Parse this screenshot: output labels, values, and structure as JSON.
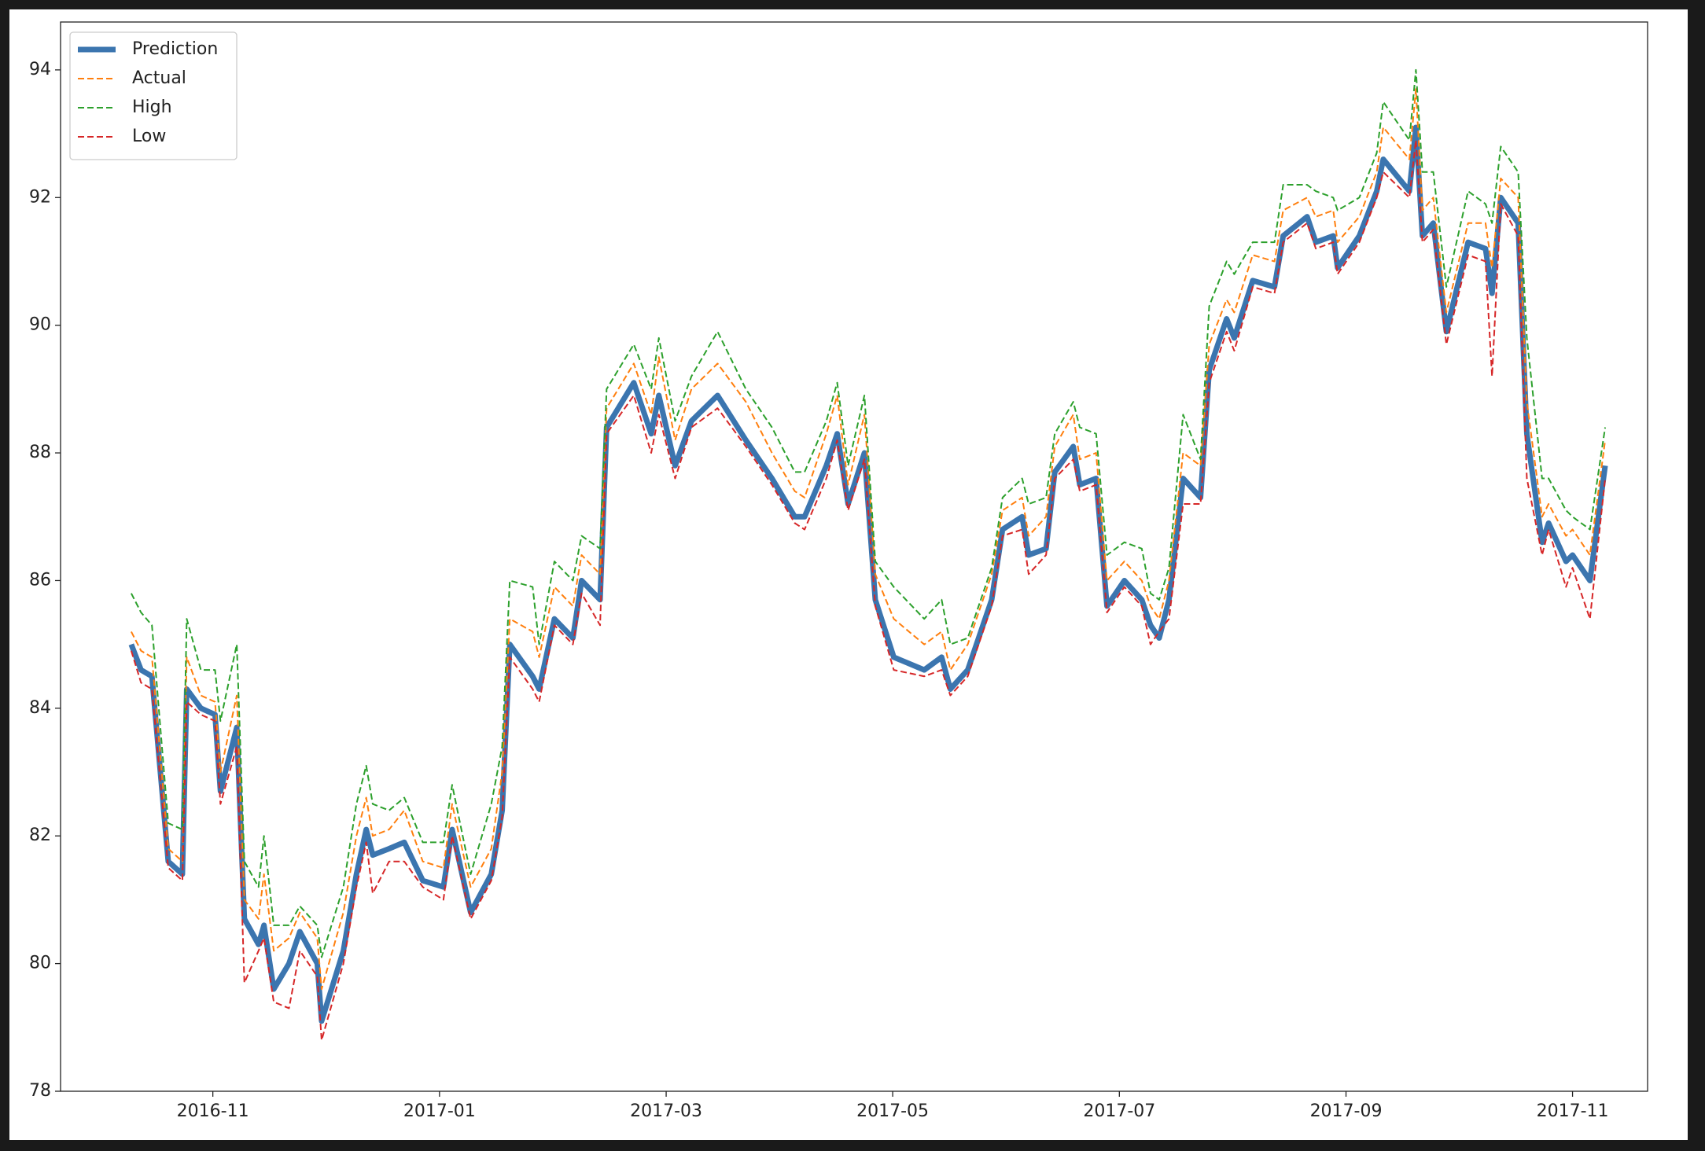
{
  "chart_data": {
    "type": "line",
    "x": [
      2016.7733,
      2016.7805,
      2016.7885,
      2016.8005,
      2016.8109,
      2016.8141,
      2016.8245,
      2016.8349,
      2016.8389,
      2016.8509,
      2016.8565,
      2016.8669,
      2016.8709,
      2016.8781,
      2016.8893,
      2016.8973,
      2016.9101,
      2016.9133,
      2016.9293,
      2016.9389,
      2016.9461,
      2016.9509,
      2016.9629,
      2016.9741,
      2016.9877,
      2017.0029,
      2017.0093,
      2017.0229,
      2017.0381,
      2017.0461,
      2017.0517,
      2017.0685,
      2017.0733,
      2017.0845,
      2017.0981,
      2017.1045,
      2017.1181,
      2017.1229,
      2017.1429,
      2017.1557,
      2017.1613,
      2017.1733,
      2017.1853,
      2017.2045,
      2017.2253,
      2017.2445,
      2017.2613,
      2017.2685,
      2017.2845,
      2017.2925,
      2017.3005,
      2017.3125,
      2017.3205,
      2017.3341,
      2017.3565,
      2017.3693,
      2017.3757,
      2017.3885,
      2017.4061,
      2017.4141,
      2017.4285,
      2017.4333,
      2017.4461,
      2017.4525,
      2017.4661,
      2017.4709,
      2017.4829,
      2017.4909,
      2017.5037,
      2017.5165,
      2017.5229,
      2017.5293,
      2017.5365,
      2017.5469,
      2017.5597,
      2017.5661,
      2017.5789,
      2017.5845,
      2017.5981,
      2017.6141,
      2017.6205,
      2017.6381,
      2017.6445,
      2017.6573,
      2017.6605,
      2017.6765,
      2017.6893,
      2017.6941,
      2017.7133,
      2017.7181,
      2017.7229,
      2017.7309,
      2017.7405,
      2017.7565,
      2017.7693,
      2017.7741,
      2017.7805,
      2017.7933,
      2017.7997,
      2017.8109,
      2017.8157,
      2017.8285,
      2017.8333,
      2017.8461,
      2017.8573
    ],
    "series": [
      {
        "name": "Prediction",
        "color": "#3b75af",
        "style": "solid",
        "width": 7,
        "values": [
          85.0,
          84.6,
          84.5,
          81.6,
          81.4,
          84.3,
          84.0,
          83.9,
          82.7,
          83.7,
          80.7,
          80.3,
          80.6,
          79.6,
          80.0,
          80.5,
          80.0,
          79.1,
          80.2,
          81.4,
          82.1,
          81.7,
          81.8,
          81.9,
          81.3,
          81.2,
          82.1,
          80.8,
          81.4,
          82.4,
          85.0,
          84.5,
          84.3,
          85.4,
          85.1,
          86.0,
          85.7,
          88.4,
          89.1,
          88.3,
          88.9,
          87.8,
          88.5,
          88.9,
          88.2,
          87.6,
          87.0,
          87.0,
          87.8,
          88.3,
          87.2,
          88.0,
          85.7,
          84.8,
          84.6,
          84.8,
          84.3,
          84.6,
          85.7,
          86.8,
          87.0,
          86.4,
          86.5,
          87.7,
          88.1,
          87.5,
          87.6,
          85.6,
          86.0,
          85.7,
          85.3,
          85.1,
          85.7,
          87.6,
          87.3,
          89.3,
          90.1,
          89.8,
          90.7,
          90.6,
          91.4,
          91.7,
          91.3,
          91.4,
          90.9,
          91.4,
          92.1,
          92.6,
          92.1,
          93.1,
          91.4,
          91.6,
          89.9,
          91.3,
          91.2,
          90.5,
          92.0,
          91.6,
          88.3,
          86.6,
          86.9,
          86.3,
          86.4,
          86.0,
          87.8
        ]
      },
      {
        "name": "Actual",
        "color": "#ff7f0e",
        "style": "dashed",
        "width": 2,
        "values": [
          85.2,
          84.9,
          84.8,
          81.8,
          81.6,
          84.8,
          84.2,
          84.1,
          83.0,
          84.2,
          81.0,
          80.7,
          81.4,
          80.2,
          80.4,
          80.8,
          80.4,
          79.6,
          80.8,
          82.0,
          82.6,
          82.0,
          82.1,
          82.4,
          81.6,
          81.5,
          82.5,
          81.2,
          81.8,
          83.0,
          85.4,
          85.2,
          84.8,
          85.9,
          85.6,
          86.4,
          86.1,
          88.7,
          89.4,
          88.6,
          89.5,
          88.2,
          89.0,
          89.4,
          88.8,
          88.0,
          87.4,
          87.3,
          88.3,
          88.9,
          87.5,
          88.6,
          86.1,
          85.4,
          85.0,
          85.2,
          84.6,
          85.0,
          86.1,
          87.1,
          87.3,
          86.7,
          87.0,
          88.1,
          88.6,
          87.9,
          88.0,
          86.0,
          86.3,
          86.0,
          85.6,
          85.4,
          86.0,
          88.0,
          87.8,
          89.7,
          90.4,
          90.2,
          91.1,
          91.0,
          91.8,
          92.0,
          91.7,
          91.8,
          91.3,
          91.7,
          92.4,
          93.1,
          92.6,
          93.7,
          91.8,
          92.0,
          90.2,
          91.6,
          91.6,
          90.9,
          92.3,
          92.0,
          88.8,
          87.0,
          87.2,
          86.7,
          86.8,
          86.4,
          88.2
        ]
      },
      {
        "name": "High",
        "color": "#2ca02c",
        "style": "dashed",
        "width": 2,
        "values": [
          85.8,
          85.5,
          85.3,
          82.2,
          82.1,
          85.4,
          84.6,
          84.6,
          83.8,
          85.0,
          81.6,
          81.2,
          82.0,
          80.6,
          80.6,
          80.9,
          80.6,
          80.1,
          81.2,
          82.5,
          83.1,
          82.5,
          82.4,
          82.6,
          81.9,
          81.9,
          82.8,
          81.4,
          82.5,
          83.4,
          86.0,
          85.9,
          85.0,
          86.3,
          86.0,
          86.7,
          86.5,
          89.0,
          89.7,
          89.0,
          89.8,
          88.5,
          89.2,
          89.9,
          89.0,
          88.4,
          87.7,
          87.7,
          88.5,
          89.1,
          87.8,
          88.9,
          86.3,
          85.9,
          85.4,
          85.7,
          85.0,
          85.1,
          86.2,
          87.3,
          87.6,
          87.2,
          87.3,
          88.3,
          88.8,
          88.4,
          88.3,
          86.4,
          86.6,
          86.5,
          85.8,
          85.7,
          86.2,
          88.6,
          87.9,
          90.3,
          91.0,
          90.8,
          91.3,
          91.3,
          92.2,
          92.2,
          92.1,
          92.0,
          91.8,
          92.0,
          92.7,
          93.5,
          92.9,
          94.0,
          92.4,
          92.4,
          90.6,
          92.1,
          91.9,
          91.6,
          92.8,
          92.4,
          89.8,
          87.6,
          87.6,
          87.1,
          87.0,
          86.8,
          88.4
        ]
      },
      {
        "name": "Low",
        "color": "#d62728",
        "style": "dashed",
        "width": 2,
        "values": [
          84.9,
          84.4,
          84.3,
          81.5,
          81.3,
          84.1,
          83.9,
          83.8,
          82.5,
          83.4,
          79.7,
          80.2,
          80.4,
          79.4,
          79.3,
          80.2,
          79.8,
          78.8,
          80.0,
          81.2,
          81.9,
          81.1,
          81.6,
          81.6,
          81.2,
          81.0,
          82.0,
          80.7,
          81.3,
          82.3,
          84.8,
          84.3,
          84.1,
          85.3,
          85.0,
          85.8,
          85.3,
          88.3,
          88.9,
          88.0,
          88.6,
          87.6,
          88.4,
          88.7,
          88.1,
          87.5,
          86.9,
          86.8,
          87.6,
          88.2,
          87.1,
          87.9,
          85.6,
          84.6,
          84.5,
          84.6,
          84.2,
          84.5,
          85.6,
          86.7,
          86.8,
          86.1,
          86.4,
          87.6,
          87.9,
          87.4,
          87.5,
          85.5,
          85.9,
          85.6,
          85.0,
          85.2,
          85.4,
          87.2,
          87.2,
          89.1,
          89.9,
          89.6,
          90.6,
          90.5,
          91.3,
          91.6,
          91.2,
          91.3,
          90.8,
          91.3,
          92.0,
          92.4,
          92.0,
          92.9,
          91.3,
          91.5,
          89.7,
          91.1,
          91.0,
          89.2,
          91.9,
          91.4,
          87.6,
          86.4,
          86.8,
          85.9,
          86.2,
          85.4,
          87.6
        ]
      }
    ],
    "xlim": [
      2016.7213,
      2017.8885
    ],
    "xticks": [
      {
        "value": 2016.8333,
        "label": "2016-11"
      },
      {
        "value": 2017.0,
        "label": "2017-01"
      },
      {
        "value": 2017.1667,
        "label": "2017-03"
      },
      {
        "value": 2017.3333,
        "label": "2017-05"
      },
      {
        "value": 2017.5,
        "label": "2017-07"
      },
      {
        "value": 2017.6667,
        "label": "2017-09"
      },
      {
        "value": 2017.8333,
        "label": "2017-11"
      }
    ],
    "ylim": [
      78,
      94.75
    ],
    "yticks": [
      78,
      80,
      82,
      84,
      86,
      88,
      90,
      92,
      94
    ],
    "legend": "upper left",
    "grid": false
  }
}
